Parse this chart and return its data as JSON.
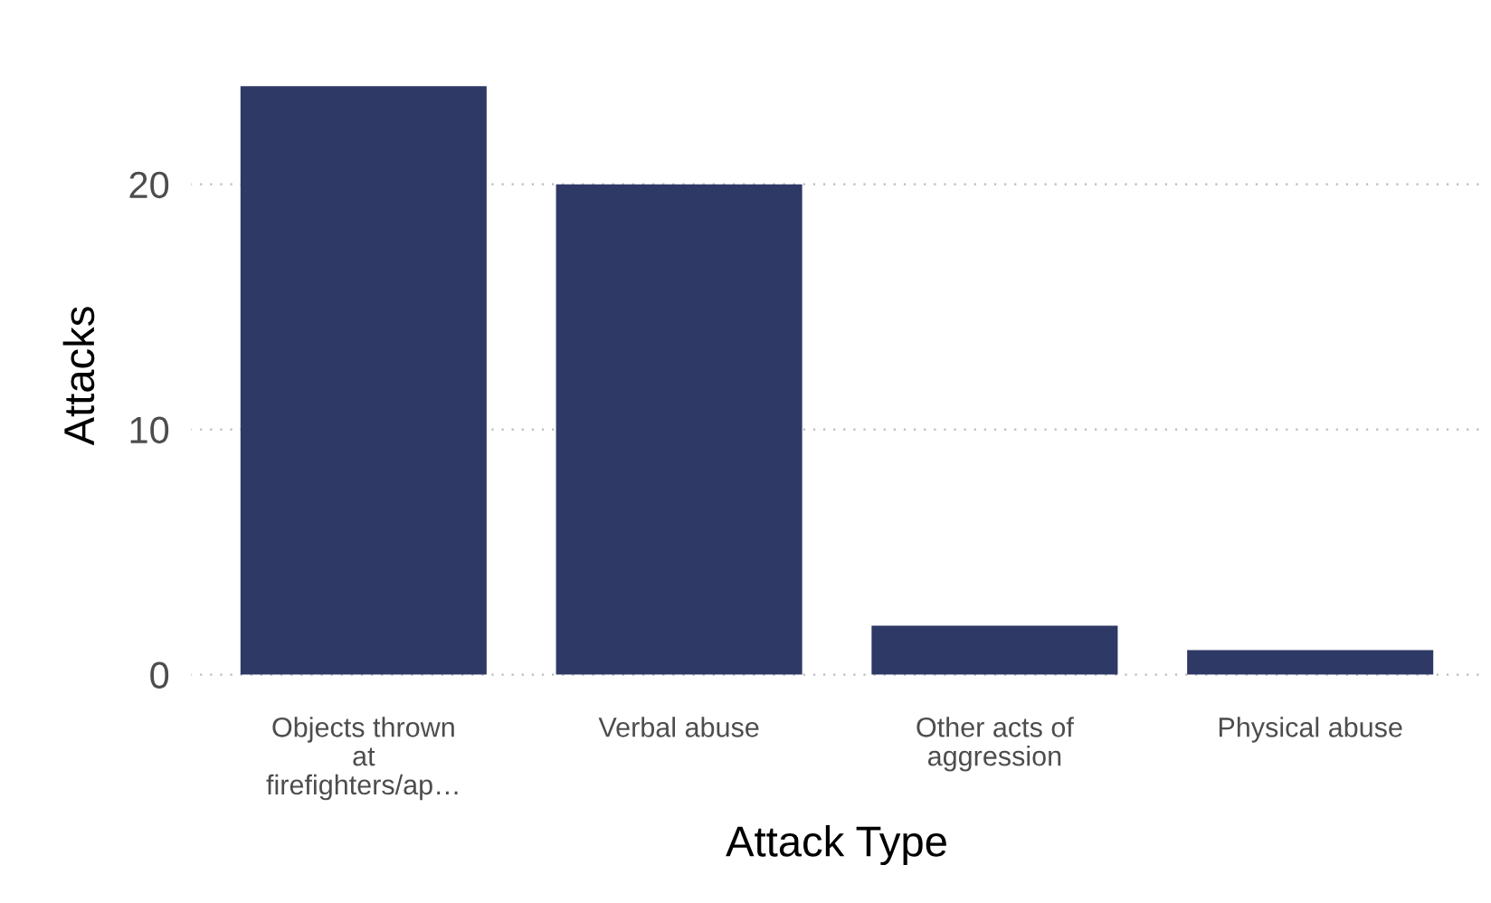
{
  "chart_data": {
    "type": "bar",
    "categories": [
      "Objects thrown\nat\nfirefighters/ap…",
      "Verbal abuse",
      "Other acts of\naggression",
      "Physical abuse"
    ],
    "values": [
      24,
      20,
      2,
      1
    ],
    "color": "#2e3966",
    "xlabel": "Attack Type",
    "ylabel": "Attacks",
    "ylim": [
      -0.9,
      25.3
    ],
    "yticks": [
      0,
      10,
      20
    ],
    "grid": "y",
    "legend": false
  }
}
